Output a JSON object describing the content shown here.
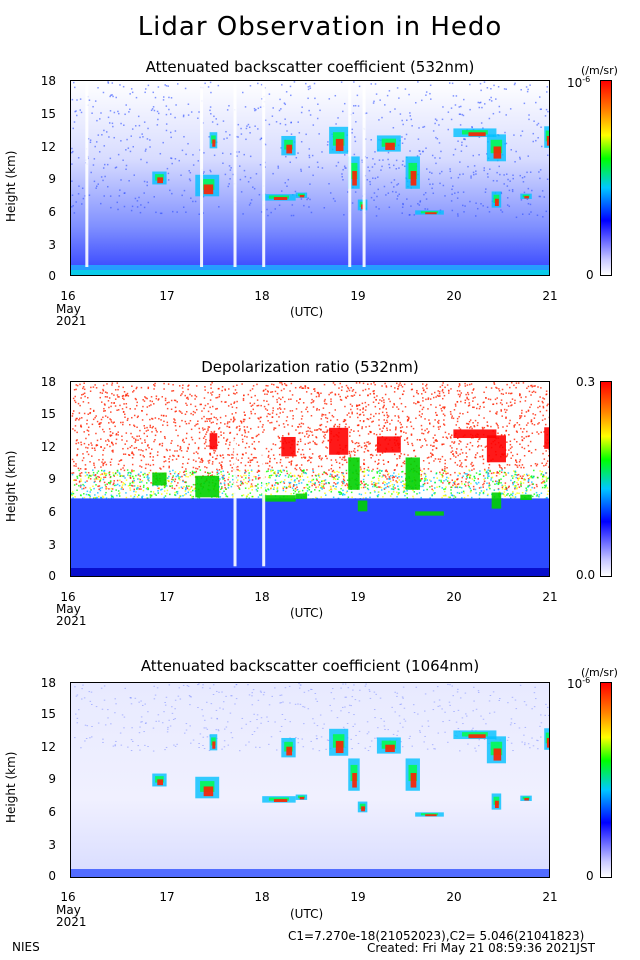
{
  "title": "Lidar Observation in Hedo",
  "chart_data": [
    {
      "type": "heatmap",
      "title": "Attenuated backscatter coefficient (532nm)",
      "ylabel": "Height (km)",
      "xlabel": "(UTC)",
      "ylim": [
        0,
        18
      ],
      "yticks": [
        "0",
        "3",
        "6",
        "9",
        "12",
        "15",
        "18"
      ],
      "xticks": [
        "16",
        "17",
        "18",
        "19",
        "20",
        "21"
      ],
      "x_month": "May",
      "x_year": "2021",
      "colorbar": {
        "min": "0",
        "max": "10",
        "max_exp": "-6",
        "unit": "(/m/sr)"
      }
    },
    {
      "type": "heatmap",
      "title": "Depolarization ratio (532nm)",
      "ylabel": "Height (km)",
      "xlabel": "(UTC)",
      "ylim": [
        0,
        18
      ],
      "yticks": [
        "0",
        "3",
        "6",
        "9",
        "12",
        "15",
        "18"
      ],
      "xticks": [
        "16",
        "17",
        "18",
        "19",
        "20",
        "21"
      ],
      "x_month": "May",
      "x_year": "2021",
      "colorbar": {
        "min": "0.0",
        "max": "0.3",
        "max_exp": "",
        "unit": ""
      }
    },
    {
      "type": "heatmap",
      "title": "Attenuated backscatter coefficient (1064nm)",
      "ylabel": "Height (km)",
      "xlabel": "(UTC)",
      "ylim": [
        0,
        18
      ],
      "yticks": [
        "0",
        "3",
        "6",
        "9",
        "12",
        "15",
        "18"
      ],
      "xticks": [
        "16",
        "17",
        "18",
        "19",
        "20",
        "21"
      ],
      "x_month": "May",
      "x_year": "2021",
      "colorbar": {
        "min": "0",
        "max": "10",
        "max_exp": "-6",
        "unit": "(/m/sr)"
      }
    }
  ],
  "footer": {
    "org": "NIES",
    "calibration": "C1=7.270e-18(21052023),C2= 5.046(21041823)",
    "created": "Created: Fri May 21 08:59:36 2021JST"
  },
  "colors": {
    "background": "#ffffff",
    "cloud_high": "#ff0000",
    "aerosol_low": "#0000ff",
    "mid": "#00ff00"
  }
}
